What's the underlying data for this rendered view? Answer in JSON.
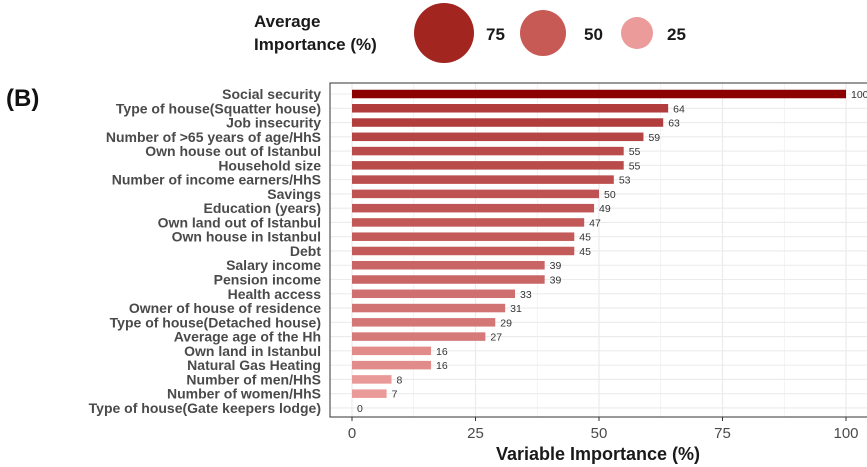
{
  "chart_data": {
    "type": "bar",
    "orientation": "horizontal",
    "panel_tag": "(B)",
    "categories": [
      "Social security",
      "Type of house(Squatter house)",
      "Job insecurity",
      "Number of >65 years of age/HhS",
      "Own house out of Istanbul",
      "Household size",
      "Number of income earners/HhS ",
      "Savings",
      "Education (years)",
      "Own land out of Istanbul",
      "Own house in Istanbul",
      "Debt",
      "Salary income",
      "Pension income",
      "Health access",
      "Owner of house of residence",
      "Type of house(Detached house)",
      "Average age of the Hh",
      "Own land in Istanbul",
      "Natural Gas Heating",
      "Number of men/HhS",
      "Number of women/HhS",
      "Type of house(Gate keepers lodge)"
    ],
    "values": [
      100,
      64,
      63,
      59,
      55,
      55,
      53,
      50,
      49,
      47,
      45,
      45,
      39,
      39,
      33,
      31,
      29,
      27,
      16,
      16,
      8,
      7,
      0
    ],
    "value_labels": [
      "100",
      "64",
      "63",
      "59",
      "55",
      "55",
      "53",
      "50",
      "49",
      "47",
      "45",
      "45",
      "39",
      "39",
      "33",
      "31",
      "29",
      "27",
      "16",
      "16",
      "8",
      "7",
      "0"
    ],
    "xlabel": "Variable Importance (%)",
    "xlim": [
      0,
      100
    ],
    "xticks": [
      0,
      25,
      50,
      75,
      100
    ],
    "xtick_labels": [
      "0",
      "25",
      "50",
      "75",
      "100"
    ],
    "grid": true,
    "legend": {
      "title": "Average\nImportance (%)",
      "title_lines": [
        "Average",
        "Importance (%)"
      ],
      "placement": "top",
      "items": [
        {
          "label": "75",
          "value": 75
        },
        {
          "label": "50",
          "value": 50
        },
        {
          "label": "25",
          "value": 25
        }
      ]
    },
    "colors": {
      "high": "#8b0000",
      "low": "#f2a6a6",
      "grid": "#ebebeb",
      "panel_border": "#333333",
      "legend_high": "#a3251f",
      "legend_mid": "#c85a56",
      "legend_low": "#ec9b9b"
    }
  }
}
